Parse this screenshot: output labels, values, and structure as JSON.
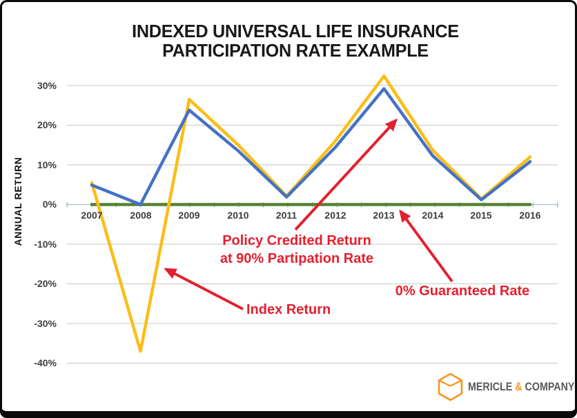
{
  "title": {
    "line1": "INDEXED UNIVERSAL LIFE INSURANCE",
    "line2": "PARTICIPATION RATE EXAMPLE"
  },
  "y_axis": {
    "title": "ANNUAL RETURN",
    "tick_labels": [
      "30%",
      "20%",
      "10%",
      "0%",
      "-10%",
      "-20%",
      "-30%",
      "-40%"
    ],
    "tick_values": [
      30,
      20,
      10,
      0,
      -10,
      -20,
      -30,
      -40
    ]
  },
  "x_axis": {
    "tick_labels": [
      "2007",
      "2008",
      "2009",
      "2010",
      "2011",
      "2012",
      "2013",
      "2014",
      "2015",
      "2016"
    ]
  },
  "annotations": {
    "policy_line1": "Policy Credited Return",
    "policy_line2": "at 90% Partipation Rate",
    "index": "Index Return",
    "guaranteed": "0% Guaranteed Rate"
  },
  "logo": {
    "word1": "MERICLE",
    "amp": "&",
    "word2": "COMPANY",
    "icon": "hexagon-box-icon",
    "icon_color": "#f7941d",
    "text_color": "#58595b"
  },
  "colors": {
    "index_line": "#fbbd17",
    "policy_line": "#4472c4",
    "guaranteed_line": "#548235",
    "annotation_red": "#e3202e",
    "gridline": "#c6c6c6",
    "axis_line": "#a9c0d6",
    "tick": "#8c8c8c",
    "label_text": "#3e3e3e",
    "title_text": "#181818"
  },
  "chart_data": {
    "type": "line",
    "title": "INDEXED UNIVERSAL LIFE INSURANCE PARTICIPATION RATE EXAMPLE",
    "xlabel": "",
    "ylabel": "ANNUAL RETURN",
    "categories": [
      2007,
      2008,
      2009,
      2010,
      2011,
      2012,
      2013,
      2014,
      2015,
      2016
    ],
    "series": [
      {
        "name": "Index Return",
        "color": "#fbbd17",
        "values": [
          5.5,
          -37.0,
          26.5,
          15.1,
          2.1,
          16.0,
          32.4,
          13.7,
          1.4,
          12.0
        ]
      },
      {
        "name": "Policy Credited Return at 90% Partipation Rate",
        "color": "#4472c4",
        "values": [
          4.9,
          0.0,
          23.8,
          13.6,
          1.9,
          14.4,
          29.2,
          12.3,
          1.2,
          10.8
        ]
      },
      {
        "name": "0% Guaranteed Rate",
        "color": "#548235",
        "values": [
          0,
          0,
          0,
          0,
          0,
          0,
          0,
          0,
          0,
          0
        ]
      }
    ],
    "ylim": [
      -40,
      35
    ],
    "grid": true,
    "legend_position": "none",
    "annotations": [
      "Policy Credited Return at 90% Partipation Rate",
      "Index Return",
      "0% Guaranteed Rate"
    ]
  }
}
